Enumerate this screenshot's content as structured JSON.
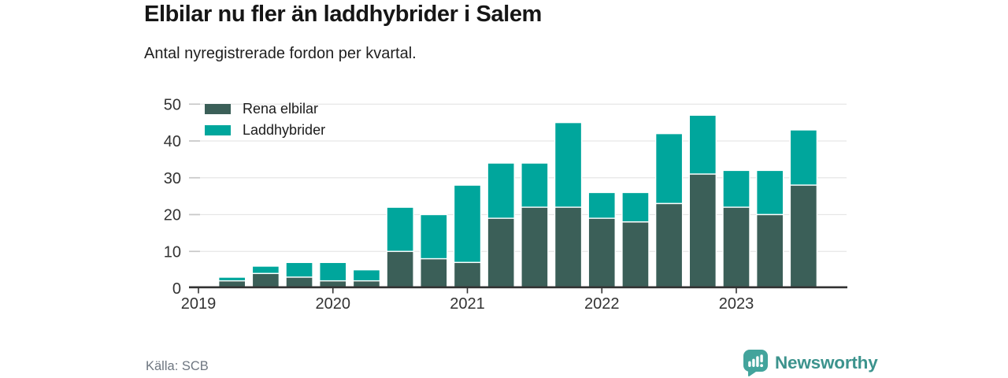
{
  "header": {
    "title": "Elbilar nu fler än laddhybrider i Salem",
    "subtitle": "Antal nyregistrerade fordon per kvartal."
  },
  "legend": {
    "items": [
      {
        "label": "Rena elbilar",
        "color": "#3b5f58"
      },
      {
        "label": "Laddhybrider",
        "color": "#00a69c"
      }
    ]
  },
  "chart_data": {
    "type": "bar",
    "stacked": true,
    "title": "Elbilar nu fler än laddhybrider i Salem",
    "subtitle": "Antal nyregistrerade fordon per kvartal.",
    "categories": [
      "2019 K1",
      "2019 K2",
      "2019 K3",
      "2019 K4",
      "2020 K1",
      "2020 K2",
      "2020 K3",
      "2020 K4",
      "2021 K1",
      "2021 K2",
      "2021 K3",
      "2021 K4",
      "2022 K1",
      "2022 K2",
      "2022 K3",
      "2022 K4",
      "2023 K1",
      "2023 K2",
      "2023 K3"
    ],
    "series": [
      {
        "name": "Rena elbilar",
        "color": "#3b5f58",
        "values": [
          0,
          2,
          4,
          3,
          2,
          2,
          10,
          8,
          7,
          19,
          22,
          22,
          19,
          18,
          23,
          31,
          22,
          20,
          28
        ]
      },
      {
        "name": "Laddhybrider",
        "color": "#00a69c",
        "values": [
          0,
          1,
          2,
          4,
          5,
          3,
          12,
          12,
          21,
          15,
          12,
          23,
          7,
          8,
          19,
          16,
          10,
          12,
          15
        ]
      }
    ],
    "x_tick_labels": [
      "2019",
      "2020",
      "2021",
      "2022",
      "2023"
    ],
    "yticks": [
      0,
      10,
      20,
      30,
      40,
      50
    ],
    "ylim": [
      0,
      50
    ],
    "grid": true,
    "legend_position": "top-left-inside",
    "axis_color": "#333333",
    "gridline_color": "#e6e6e6",
    "tick_dash_color": "#c8c8c8",
    "bar_stroke_color": "#ffffff"
  },
  "footer": {
    "source": "Källa: SCB",
    "brand": "Newsworthy",
    "brand_text_color": "#3c938d",
    "brand_mark_color": "#43a49c"
  }
}
